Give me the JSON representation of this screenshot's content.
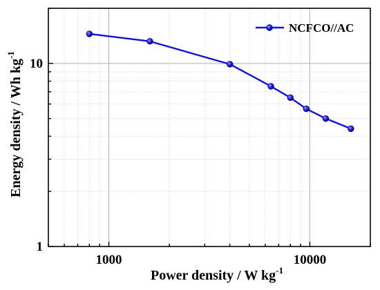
{
  "chart_data": {
    "type": "line",
    "xscale": "log",
    "yscale": "log",
    "xlim": [
      500,
      20000
    ],
    "ylim": [
      1,
      20
    ],
    "grid": true,
    "legend_position": "top-right",
    "xlabel": {
      "main": "Power density / W kg",
      "sup": "-1"
    },
    "ylabel": {
      "main": "Energy density / Wh kg",
      "sup": "-1"
    },
    "x_ticks": [
      {
        "value": 1000,
        "label": "1000"
      },
      {
        "value": 10000,
        "label": "10000"
      }
    ],
    "y_ticks": [
      {
        "value": 1,
        "label": "1"
      },
      {
        "value": 10,
        "label": "10"
      }
    ],
    "series": [
      {
        "name": "NCFCO//AC",
        "color": "#1010dd",
        "x": [
          800,
          1600,
          4000,
          6400,
          8000,
          9600,
          12000,
          16000
        ],
        "y": [
          14.5,
          13.2,
          9.9,
          7.5,
          6.5,
          5.65,
          5.0,
          4.4
        ]
      }
    ]
  }
}
